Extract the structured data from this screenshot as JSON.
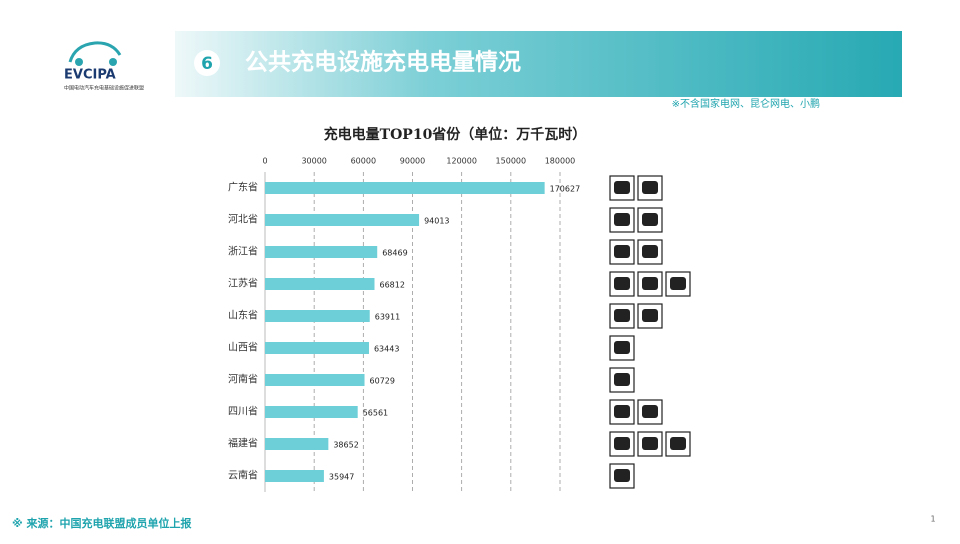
{
  "header": {
    "number": "6",
    "title": "公共充电设施充电电量情况",
    "note": "※不含国家电网、昆仑网电、小鹏",
    "logo": "EVCIPA",
    "logo_subtitle": "中国电动汽车充电基础设施促进联盟"
  },
  "footer": {
    "source": "※ 来源：中国充电联盟成员单位上报",
    "page_number": "1"
  },
  "chart_data": {
    "type": "hbar",
    "title": "充电电量TOP10省份（单位：万千瓦时）",
    "categories": [
      "广东省",
      "河北省",
      "浙江省",
      "江苏省",
      "山东省",
      "山西省",
      "河南省",
      "四川省",
      "福建省",
      "云南省"
    ],
    "values": [
      170627,
      94013,
      68469,
      66812,
      63911,
      63443,
      60729,
      56561,
      38652,
      35947
    ],
    "color": "#6dcfd8",
    "xlim": [
      0,
      180000
    ],
    "xticks": [
      0,
      30000,
      60000,
      90000,
      120000,
      150000,
      180000
    ],
    "grid": true
  }
}
